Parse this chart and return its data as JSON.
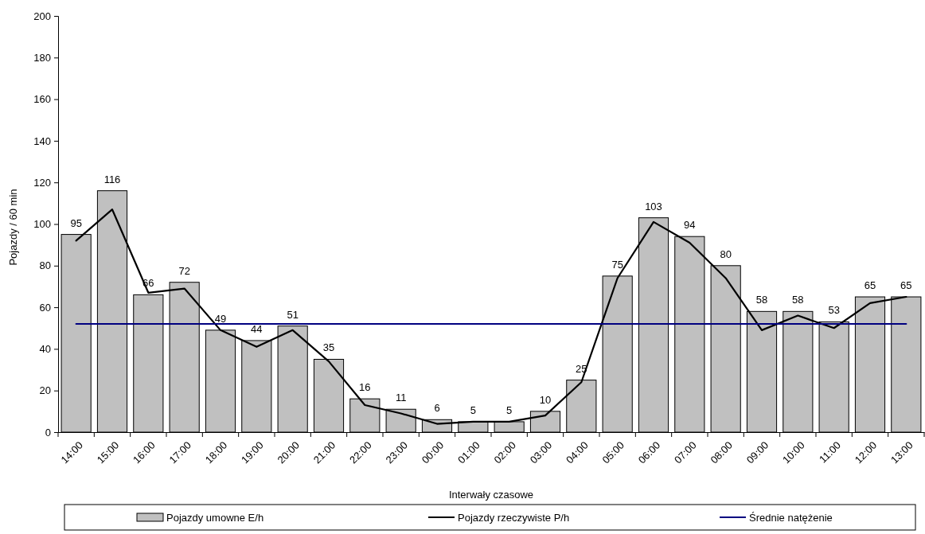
{
  "chart_data": {
    "type": "bar",
    "xlabel": "Interwały czasowe",
    "ylabel": "Pojazdy / 60 min",
    "categories": [
      "14:00",
      "15:00",
      "16:00",
      "17:00",
      "18:00",
      "19:00",
      "20:00",
      "21:00",
      "22:00",
      "23:00",
      "00:00",
      "01:00",
      "02:00",
      "03:00",
      "04:00",
      "05:00",
      "06:00",
      "07:00",
      "08:00",
      "09:00",
      "10:00",
      "11:00",
      "12:00",
      "13:00"
    ],
    "series": [
      {
        "name": "Pojazdy umowne E/h",
        "color": "#c0c0c0",
        "values": [
          95,
          116,
          66,
          72,
          49,
          44,
          51,
          35,
          16,
          11,
          6,
          5,
          5,
          10,
          25,
          75,
          103,
          94,
          80,
          58,
          58,
          53,
          65,
          65
        ],
        "value_labels": [
          "95",
          "116",
          "66",
          "72",
          "49",
          "44",
          "51",
          "35",
          "16",
          "11",
          "6",
          "5",
          "5",
          "10",
          "25",
          "75",
          "103",
          "94",
          "80",
          "58",
          "58",
          "53",
          "65",
          "65"
        ]
      },
      {
        "name": "Pojazdy rzeczywiste P/h",
        "type": "line",
        "color": "#000000",
        "values": [
          92,
          107,
          67,
          69,
          49,
          41,
          49,
          34,
          13,
          9,
          4,
          5,
          5,
          8,
          24,
          74,
          101,
          91,
          74,
          49,
          56,
          50,
          62,
          65
        ]
      },
      {
        "name": "Średnie natężenie",
        "type": "line",
        "color": "#000080",
        "values": [
          52,
          52,
          52,
          52,
          52,
          52,
          52,
          52,
          52,
          52,
          52,
          52,
          52,
          52,
          52,
          52,
          52,
          52,
          52,
          52,
          52,
          52,
          52,
          52
        ]
      }
    ],
    "ylim": [
      0,
      200
    ],
    "yticks": [
      0,
      20,
      40,
      60,
      80,
      100,
      120,
      140,
      160,
      180,
      200
    ],
    "legend": "bottom"
  }
}
